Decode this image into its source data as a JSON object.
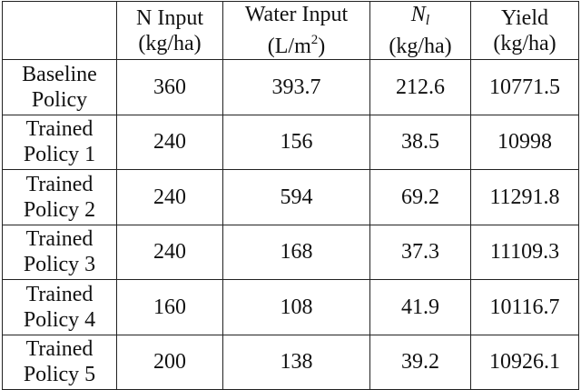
{
  "table": {
    "headers": [
      {
        "line1": "",
        "line2": ""
      },
      {
        "line1": "N Input",
        "line2": "(kg/ha)"
      },
      {
        "line1_pre": "Water Input",
        "line2_pre": "(L/m",
        "line2_sup": "2",
        "line2_post": ")"
      },
      {
        "line1_main": "N",
        "line1_sub": "l",
        "line2": "(kg/ha)"
      },
      {
        "line1": "Yield",
        "line2": "(kg/ha)"
      }
    ],
    "rows": [
      {
        "label1": "Baseline",
        "label2": "Policy",
        "n_input": "360",
        "water_input": "393.7",
        "n_l": "212.6",
        "yield": "10771.5"
      },
      {
        "label1": "Trained",
        "label2": "Policy 1",
        "n_input": "240",
        "water_input": "156",
        "n_l": "38.5",
        "yield": "10998"
      },
      {
        "label1": "Trained",
        "label2": "Policy 2",
        "n_input": "240",
        "water_input": "594",
        "n_l": "69.2",
        "yield": "11291.8"
      },
      {
        "label1": "Trained",
        "label2": "Policy 3",
        "n_input": "240",
        "water_input": "168",
        "n_l": "37.3",
        "yield": "11109.3"
      },
      {
        "label1": "Trained",
        "label2": "Policy 4",
        "n_input": "160",
        "water_input": "108",
        "n_l": "41.9",
        "yield": "10116.7"
      },
      {
        "label1": "Trained",
        "label2": "Policy 5",
        "n_input": "200",
        "water_input": "138",
        "n_l": "39.2",
        "yield": "10926.1"
      }
    ]
  }
}
